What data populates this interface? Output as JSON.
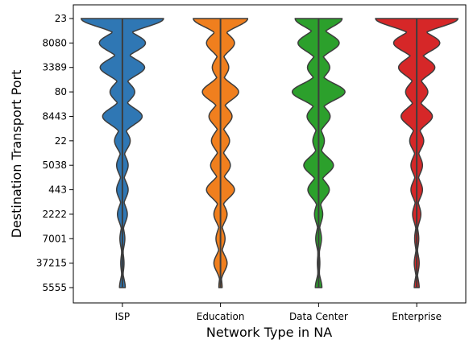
{
  "chart_data": {
    "type": "violin",
    "xlabel": "Network Type in NA",
    "ylabel": "Destination Transport Port",
    "categories": [
      "ISP",
      "Education",
      "Data Center",
      "Enterprise"
    ],
    "y_categories": [
      "23",
      "8080",
      "3389",
      "80",
      "8443",
      "22",
      "5038",
      "443",
      "2222",
      "7001",
      "37215",
      "5555"
    ],
    "series": [
      {
        "name": "ISP",
        "color": "#2f77b4",
        "density": [
          1.0,
          0.56,
          0.54,
          0.3,
          0.48,
          0.19,
          0.14,
          0.14,
          0.12,
          0.06,
          0.04,
          0.07
        ]
      },
      {
        "name": "Education",
        "color": "#f07f1e",
        "density": [
          0.66,
          0.34,
          0.2,
          0.44,
          0.28,
          0.22,
          0.24,
          0.34,
          0.16,
          0.11,
          0.16,
          0.04
        ]
      },
      {
        "name": "Data Center",
        "color": "#2ca02c",
        "density": [
          0.57,
          0.5,
          0.27,
          0.64,
          0.28,
          0.14,
          0.36,
          0.26,
          0.1,
          0.07,
          0.03,
          0.08
        ]
      },
      {
        "name": "Enterprise",
        "color": "#d62728",
        "density": [
          1.0,
          0.56,
          0.44,
          0.27,
          0.38,
          0.17,
          0.14,
          0.14,
          0.1,
          0.05,
          0.06,
          0.06
        ]
      }
    ],
    "grid": false,
    "legend": "none"
  }
}
